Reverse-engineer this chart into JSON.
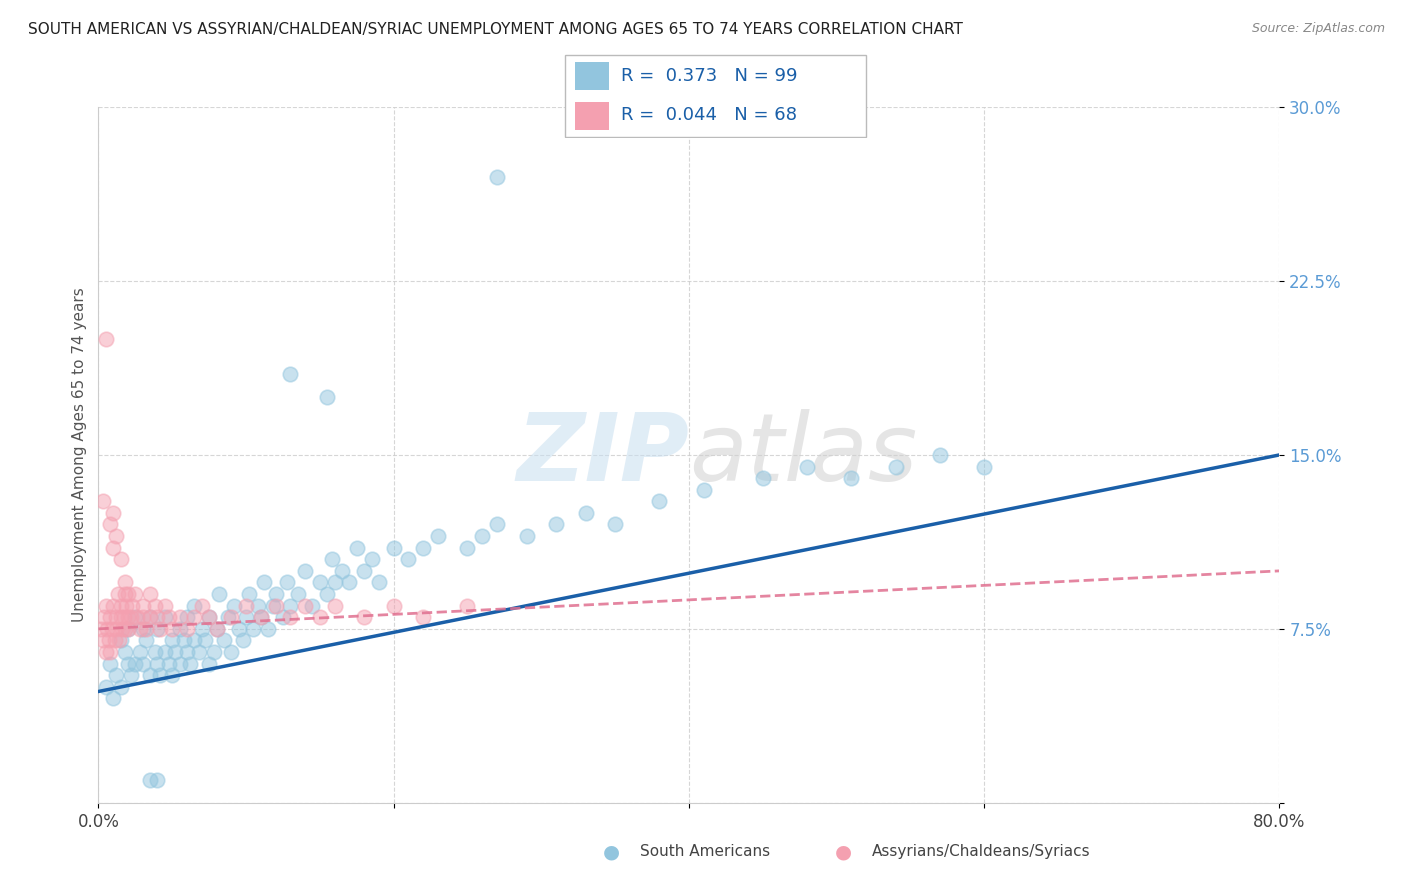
{
  "title": "SOUTH AMERICAN VS ASSYRIAN/CHALDEAN/SYRIAC UNEMPLOYMENT AMONG AGES 65 TO 74 YEARS CORRELATION CHART",
  "source": "Source: ZipAtlas.com",
  "ylabel": "Unemployment Among Ages 65 to 74 years",
  "xlim": [
    0,
    0.8
  ],
  "ylim": [
    0,
    0.3
  ],
  "xticks": [
    0.0,
    0.2,
    0.4,
    0.6,
    0.8
  ],
  "xticklabels": [
    "0.0%",
    "",
    "",
    "",
    "80.0%"
  ],
  "yticks": [
    0.0,
    0.075,
    0.15,
    0.225,
    0.3
  ],
  "yticklabels": [
    "",
    "7.5%",
    "15.0%",
    "22.5%",
    "30.0%"
  ],
  "blue_color": "#92c5de",
  "pink_color": "#f4a0b0",
  "blue_line_color": "#1a5fa8",
  "pink_line_color": "#e07090",
  "legend_label_blue": "South Americans",
  "legend_label_pink": "Assyrians/Chaldeans/Syriacs",
  "R_blue": 0.373,
  "N_blue": 99,
  "R_pink": 0.044,
  "N_pink": 68,
  "watermark_zip": "ZIP",
  "watermark_atlas": "atlas",
  "blue_line_x0": 0.0,
  "blue_line_y0": 0.048,
  "blue_line_x1": 0.8,
  "blue_line_y1": 0.15,
  "pink_line_x0": 0.0,
  "pink_line_y0": 0.075,
  "pink_line_x1": 0.8,
  "pink_line_y1": 0.1,
  "blue_x": [
    0.005,
    0.008,
    0.01,
    0.012,
    0.015,
    0.015,
    0.018,
    0.02,
    0.02,
    0.022,
    0.025,
    0.025,
    0.028,
    0.03,
    0.03,
    0.032,
    0.035,
    0.035,
    0.038,
    0.04,
    0.04,
    0.042,
    0.045,
    0.045,
    0.048,
    0.05,
    0.05,
    0.052,
    0.055,
    0.055,
    0.058,
    0.06,
    0.06,
    0.062,
    0.065,
    0.065,
    0.068,
    0.07,
    0.072,
    0.075,
    0.075,
    0.078,
    0.08,
    0.082,
    0.085,
    0.088,
    0.09,
    0.092,
    0.095,
    0.098,
    0.1,
    0.102,
    0.105,
    0.108,
    0.11,
    0.112,
    0.115,
    0.118,
    0.12,
    0.125,
    0.128,
    0.13,
    0.135,
    0.14,
    0.145,
    0.15,
    0.155,
    0.158,
    0.16,
    0.165,
    0.17,
    0.175,
    0.18,
    0.185,
    0.19,
    0.2,
    0.21,
    0.22,
    0.23,
    0.25,
    0.26,
    0.27,
    0.29,
    0.31,
    0.33,
    0.35,
    0.38,
    0.41,
    0.45,
    0.48,
    0.51,
    0.54,
    0.57,
    0.6,
    0.27,
    0.13,
    0.155,
    0.04,
    0.035
  ],
  "blue_y": [
    0.05,
    0.06,
    0.045,
    0.055,
    0.05,
    0.07,
    0.065,
    0.06,
    0.075,
    0.055,
    0.06,
    0.08,
    0.065,
    0.06,
    0.075,
    0.07,
    0.055,
    0.08,
    0.065,
    0.06,
    0.075,
    0.055,
    0.065,
    0.08,
    0.06,
    0.07,
    0.055,
    0.065,
    0.06,
    0.075,
    0.07,
    0.065,
    0.08,
    0.06,
    0.07,
    0.085,
    0.065,
    0.075,
    0.07,
    0.06,
    0.08,
    0.065,
    0.075,
    0.09,
    0.07,
    0.08,
    0.065,
    0.085,
    0.075,
    0.07,
    0.08,
    0.09,
    0.075,
    0.085,
    0.08,
    0.095,
    0.075,
    0.085,
    0.09,
    0.08,
    0.095,
    0.085,
    0.09,
    0.1,
    0.085,
    0.095,
    0.09,
    0.105,
    0.095,
    0.1,
    0.095,
    0.11,
    0.1,
    0.105,
    0.095,
    0.11,
    0.105,
    0.11,
    0.115,
    0.11,
    0.115,
    0.12,
    0.115,
    0.12,
    0.125,
    0.12,
    0.13,
    0.135,
    0.14,
    0.145,
    0.14,
    0.145,
    0.15,
    0.145,
    0.27,
    0.185,
    0.175,
    0.01,
    0.01
  ],
  "pink_x": [
    0.002,
    0.003,
    0.004,
    0.005,
    0.005,
    0.006,
    0.007,
    0.008,
    0.008,
    0.009,
    0.01,
    0.01,
    0.011,
    0.012,
    0.012,
    0.013,
    0.014,
    0.015,
    0.015,
    0.016,
    0.017,
    0.018,
    0.018,
    0.019,
    0.02,
    0.02,
    0.022,
    0.023,
    0.025,
    0.026,
    0.028,
    0.03,
    0.03,
    0.032,
    0.035,
    0.035,
    0.038,
    0.04,
    0.042,
    0.045,
    0.048,
    0.05,
    0.055,
    0.06,
    0.065,
    0.07,
    0.075,
    0.08,
    0.09,
    0.1,
    0.11,
    0.12,
    0.13,
    0.14,
    0.15,
    0.16,
    0.18,
    0.2,
    0.22,
    0.25,
    0.003,
    0.005,
    0.008,
    0.01,
    0.012,
    0.015,
    0.018,
    0.02
  ],
  "pink_y": [
    0.075,
    0.07,
    0.08,
    0.065,
    0.085,
    0.075,
    0.07,
    0.08,
    0.065,
    0.075,
    0.125,
    0.085,
    0.07,
    0.08,
    0.075,
    0.09,
    0.07,
    0.08,
    0.085,
    0.075,
    0.08,
    0.09,
    0.075,
    0.085,
    0.08,
    0.075,
    0.08,
    0.085,
    0.09,
    0.08,
    0.075,
    0.085,
    0.08,
    0.075,
    0.09,
    0.08,
    0.085,
    0.08,
    0.075,
    0.085,
    0.08,
    0.075,
    0.08,
    0.075,
    0.08,
    0.085,
    0.08,
    0.075,
    0.08,
    0.085,
    0.08,
    0.085,
    0.08,
    0.085,
    0.08,
    0.085,
    0.08,
    0.085,
    0.08,
    0.085,
    0.13,
    0.2,
    0.12,
    0.11,
    0.115,
    0.105,
    0.095,
    0.09
  ]
}
